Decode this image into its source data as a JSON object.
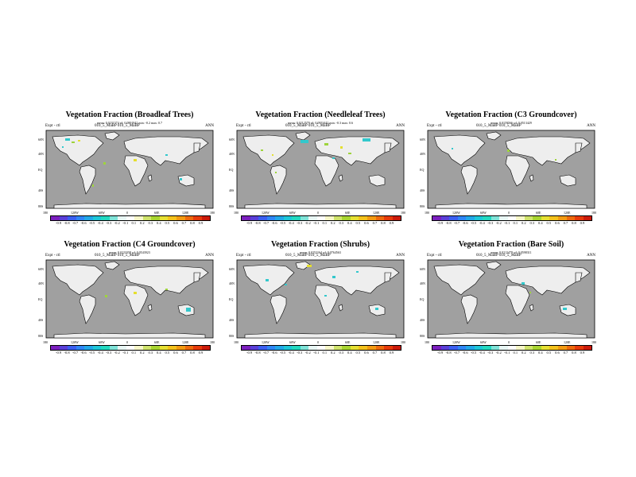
{
  "panels": [
    {
      "title": "Vegetation Fraction (Broadleaf Trees)",
      "stats": "mean: 0.0231574  sd: 0.0891842  min: -0.2  max: 0.7",
      "exp_label": "Expt - ctl",
      "case": "010_5_MaBP  010_5_MaBP",
      "season": "ANN"
    },
    {
      "title": "Vegetation Fraction (Needleleaf Trees)",
      "stats": "mean: 0.0212579  sd: 0.0953442  min: -0.3  max: 0.6",
      "exp_label": "Expt - ctl",
      "case": "010_5_MaBP  010_5_MaBP",
      "season": "ANN"
    },
    {
      "title": "Vegetation Fraction (C3 Groundcover)",
      "stats": "mean: 0.0159566  sd: 0.0513429",
      "exp_label": "Expt - ctl",
      "case": "010_5_MaBP  010_5_MaBP",
      "season": "ANN"
    },
    {
      "title": "Vegetation Fraction (C4 Groundcover)",
      "stats": "mean: 0.0223358  sd: 0.0543923",
      "exp_label": "Expt - ctl",
      "case": "010_5_MaBP  010_5_MaBP",
      "season": "ANN"
    },
    {
      "title": "Vegetation Fraction (Shrubs)",
      "stats": "mean: 0.0252164  sd: 0.0764563",
      "exp_label": "Expt - ctl",
      "case": "010_5_MaBP  010_5_MaBP",
      "season": "ANN"
    },
    {
      "title": "Vegetation Fraction (Bare Soil)",
      "stats": "mean: 0.0212479  sd: 0.0598311",
      "exp_label": "Expt - ctl",
      "case": "010_5_MaBP  010_5_MaBP",
      "season": "ANN"
    }
  ],
  "lat_labels": [
    "60N",
    "40N",
    "EQ",
    "40S",
    "80S"
  ],
  "lon_labels": [
    "180",
    "120W",
    "60W",
    "0",
    "60E",
    "120E",
    "180"
  ],
  "colorbar": {
    "labels": [
      "-0.9",
      "-0.8",
      "-0.7",
      "-0.6",
      "-0.5",
      "-0.4",
      "-0.3",
      "-0.2",
      "-0.1",
      "0.1",
      "0.2",
      "0.3",
      "0.4",
      "0.5",
      "0.6",
      "0.7",
      "0.8",
      "0.9"
    ],
    "colors": [
      "#7b1fbf",
      "#5a3fd8",
      "#3b5ff0",
      "#2f86f5",
      "#22a8e8",
      "#1ec7d8",
      "#22d9c0",
      "#7fe3d8",
      "#e8f6f4",
      "#ffffff",
      "#f6f6c8",
      "#cfe36b",
      "#a8d530",
      "#e6e033",
      "#f3c21c",
      "#f29a12",
      "#ed6a0d",
      "#e63a0a",
      "#cc1a0a"
    ]
  },
  "colors": {
    "ocean": "#a0a0a0",
    "land": "#eeeeee",
    "anomaly_cyan": "#33c8cc",
    "anomaly_green": "#9ed43c",
    "anomaly_yellow": "#e5df2e"
  }
}
